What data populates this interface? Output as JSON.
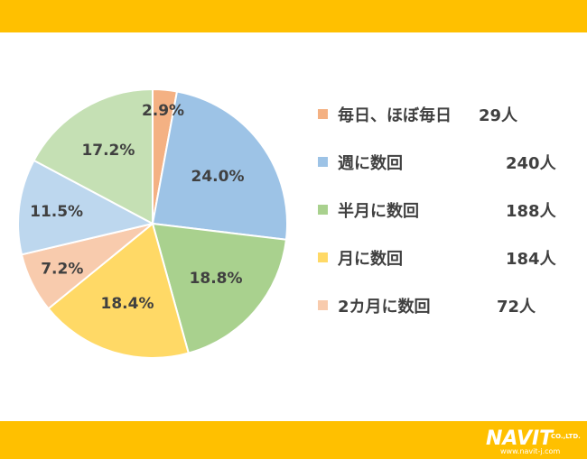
{
  "colors": {
    "banner": "#FFC000",
    "text": "#404040"
  },
  "chart_data": {
    "type": "pie",
    "start": "12 o'clock",
    "direction": "clockwise",
    "slices": [
      {
        "label": "毎日、ほぼ毎日",
        "value": 2.9,
        "pct_label": "2.9%",
        "count_label": "29人",
        "color": "#F4B183"
      },
      {
        "label": "週に数回",
        "value": 24.0,
        "pct_label": "24.0%",
        "count_label": "240人",
        "color": "#9DC3E6"
      },
      {
        "label": "半月に数回",
        "value": 18.8,
        "pct_label": "18.8%",
        "count_label": "188人",
        "color": "#A9D18E"
      },
      {
        "label": "月に数回",
        "value": 18.4,
        "pct_label": "18.4%",
        "count_label": "184人",
        "color": "#FFD966"
      },
      {
        "label": "2カ月に数回",
        "value": 7.2,
        "pct_label": "7.2%",
        "count_label": "72人",
        "color": "#F8CBAD"
      },
      {
        "label": "",
        "value": 11.5,
        "pct_label": "11.5%",
        "count_label": "",
        "color": "#BDD7EE"
      },
      {
        "label": "",
        "value": 17.2,
        "pct_label": "17.2%",
        "count_label": "",
        "color": "#C5E0B4"
      }
    ]
  },
  "legend": [
    {
      "label": "毎日、ほぼ毎日",
      "count": "29人",
      "color": "#F4B183"
    },
    {
      "label": "週に数回",
      "count": "240人",
      "color": "#9DC3E6"
    },
    {
      "label": "半月に数回",
      "count": "188人",
      "color": "#A9D18E"
    },
    {
      "label": "月に数回",
      "count": "184人",
      "color": "#FFD966"
    },
    {
      "label": "2カ月に数回",
      "count": "72人",
      "color": "#F8CBAD"
    }
  ],
  "logo": {
    "main": "NAVIT",
    "suffix": "CO.,LTD.",
    "url": "www.navit-j.com"
  }
}
